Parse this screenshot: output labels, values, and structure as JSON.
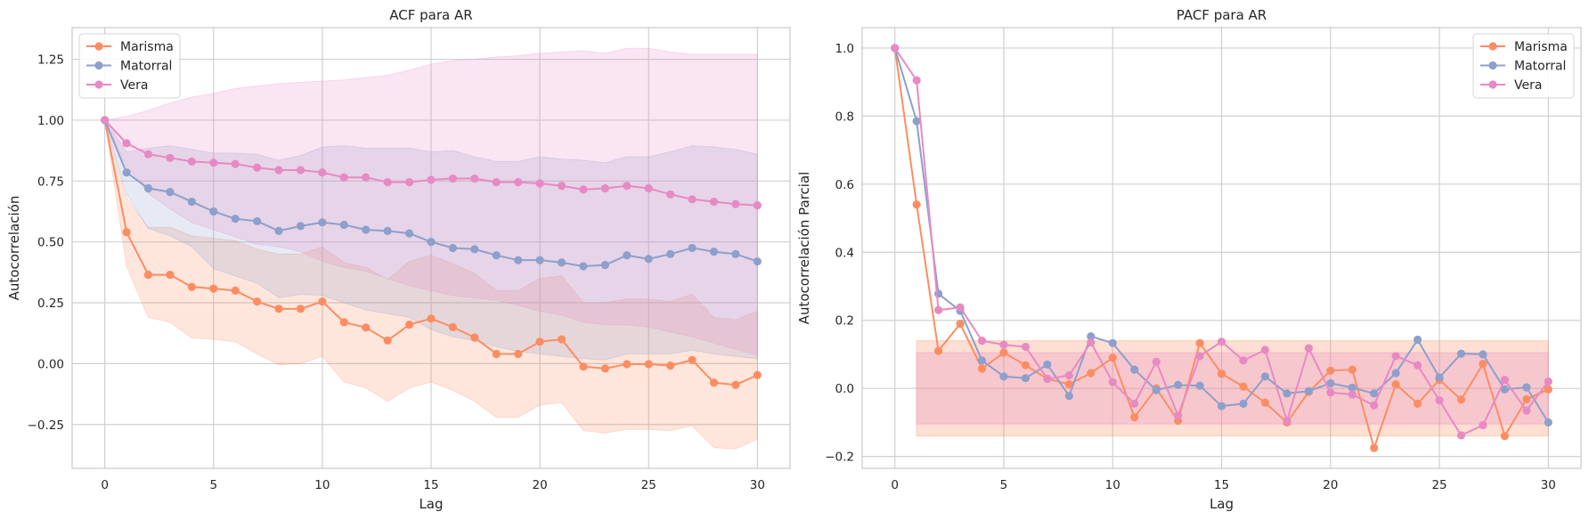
{
  "colors": {
    "marisma": "#fc8d62",
    "matorral": "#8da0cb",
    "vera": "#e78ac3",
    "grid": "#d0d0d0",
    "spine": "#cccccc"
  },
  "chart_data": [
    {
      "type": "line",
      "title": "ACF para AR",
      "xlabel": "Lag",
      "ylabel": "Autocorrelación",
      "xlim": [
        -1.5,
        31.5
      ],
      "ylim": [
        -0.43,
        1.38
      ],
      "xticks": [
        0,
        5,
        10,
        15,
        20,
        25,
        30
      ],
      "yticks": [
        -0.25,
        0.0,
        0.25,
        0.5,
        0.75,
        1.0,
        1.25
      ],
      "ytick_labels": [
        "−0.25",
        "0.00",
        "0.25",
        "0.50",
        "0.75",
        "1.00",
        "1.25"
      ],
      "grid": true,
      "legend_position": "upper-left",
      "x": [
        0,
        1,
        2,
        3,
        4,
        5,
        6,
        7,
        8,
        9,
        10,
        11,
        12,
        13,
        14,
        15,
        16,
        17,
        18,
        19,
        20,
        21,
        22,
        23,
        24,
        25,
        26,
        27,
        28,
        29,
        30
      ],
      "series": [
        {
          "name": "Marisma",
          "color_key": "marisma",
          "values": [
            1.0,
            0.54,
            0.365,
            0.365,
            0.315,
            0.308,
            0.3,
            0.255,
            0.225,
            0.225,
            0.255,
            0.17,
            0.148,
            0.095,
            0.16,
            0.185,
            0.15,
            0.107,
            0.04,
            0.04,
            0.09,
            0.1,
            -0.012,
            -0.02,
            -0.002,
            -0.002,
            -0.008,
            0.015,
            -0.078,
            -0.087,
            -0.047
          ],
          "band_upper": [
            1.0,
            0.68,
            0.56,
            0.56,
            0.525,
            0.515,
            0.505,
            0.47,
            0.45,
            0.45,
            0.48,
            0.415,
            0.395,
            0.345,
            0.42,
            0.445,
            0.41,
            0.37,
            0.3,
            0.3,
            0.35,
            0.36,
            0.25,
            0.25,
            0.265,
            0.265,
            0.255,
            0.285,
            0.19,
            0.18,
            0.215
          ],
          "band_lower": [
            1.0,
            0.4,
            0.19,
            0.17,
            0.105,
            0.1,
            0.09,
            0.04,
            -0.005,
            0.0,
            0.03,
            -0.075,
            -0.1,
            -0.155,
            -0.1,
            -0.075,
            -0.11,
            -0.155,
            -0.22,
            -0.22,
            -0.17,
            -0.16,
            -0.275,
            -0.285,
            -0.27,
            -0.27,
            -0.275,
            -0.255,
            -0.345,
            -0.35,
            -0.31
          ]
        },
        {
          "name": "Matorral",
          "color_key": "matorral",
          "values": [
            1.0,
            0.785,
            0.72,
            0.705,
            0.665,
            0.625,
            0.595,
            0.585,
            0.545,
            0.565,
            0.58,
            0.57,
            0.55,
            0.545,
            0.535,
            0.5,
            0.475,
            0.47,
            0.445,
            0.425,
            0.425,
            0.415,
            0.4,
            0.405,
            0.445,
            0.43,
            0.45,
            0.475,
            0.46,
            0.45,
            0.42
          ],
          "band_upper": [
            1.0,
            0.87,
            0.885,
            0.895,
            0.88,
            0.865,
            0.865,
            0.86,
            0.835,
            0.855,
            0.89,
            0.895,
            0.885,
            0.885,
            0.885,
            0.87,
            0.875,
            0.85,
            0.83,
            0.83,
            0.85,
            0.84,
            0.835,
            0.825,
            0.85,
            0.85,
            0.87,
            0.895,
            0.89,
            0.88,
            0.86
          ],
          "band_lower": [
            1.0,
            0.695,
            0.555,
            0.525,
            0.48,
            0.39,
            0.36,
            0.33,
            0.27,
            0.285,
            0.28,
            0.25,
            0.22,
            0.205,
            0.19,
            0.14,
            0.11,
            0.095,
            0.07,
            0.05,
            0.04,
            0.03,
            0.02,
            0.015,
            0.04,
            0.04,
            0.04,
            0.055,
            0.04,
            0.03,
            0.02
          ]
        },
        {
          "name": "Vera",
          "color_key": "vera",
          "values": [
            1.0,
            0.905,
            0.86,
            0.845,
            0.83,
            0.825,
            0.82,
            0.805,
            0.795,
            0.795,
            0.785,
            0.765,
            0.765,
            0.745,
            0.745,
            0.755,
            0.76,
            0.76,
            0.745,
            0.745,
            0.74,
            0.73,
            0.715,
            0.72,
            0.73,
            0.72,
            0.695,
            0.675,
            0.665,
            0.655,
            0.65
          ],
          "band_upper": [
            1.0,
            1.015,
            1.04,
            1.07,
            1.095,
            1.11,
            1.13,
            1.14,
            1.15,
            1.155,
            1.16,
            1.165,
            1.175,
            1.185,
            1.205,
            1.23,
            1.245,
            1.25,
            1.26,
            1.265,
            1.275,
            1.28,
            1.285,
            1.275,
            1.295,
            1.295,
            1.28,
            1.27,
            1.27,
            1.27,
            1.27
          ],
          "band_lower": [
            1.0,
            0.81,
            0.7,
            0.635,
            0.58,
            0.55,
            0.52,
            0.49,
            0.48,
            0.46,
            0.42,
            0.395,
            0.38,
            0.35,
            0.32,
            0.3,
            0.28,
            0.27,
            0.26,
            0.24,
            0.215,
            0.2,
            0.17,
            0.16,
            0.16,
            0.15,
            0.13,
            0.11,
            0.085,
            0.06,
            0.035
          ]
        }
      ]
    },
    {
      "type": "line",
      "title": "PACF para AR",
      "xlabel": "Lag",
      "ylabel": "Autocorrelación Parcial",
      "xlim": [
        -1.5,
        31.5
      ],
      "ylim": [
        -0.235,
        1.06
      ],
      "xticks": [
        0,
        5,
        10,
        15,
        20,
        25,
        30
      ],
      "yticks": [
        -0.2,
        0.0,
        0.2,
        0.4,
        0.6,
        0.8,
        1.0
      ],
      "ytick_labels": [
        "−0.2",
        "0.0",
        "0.2",
        "0.4",
        "0.6",
        "0.8",
        "1.0"
      ],
      "grid": true,
      "legend_position": "upper-right",
      "x": [
        0,
        1,
        2,
        3,
        4,
        5,
        6,
        7,
        8,
        9,
        10,
        11,
        12,
        13,
        14,
        15,
        16,
        17,
        18,
        19,
        20,
        21,
        22,
        23,
        24,
        25,
        26,
        27,
        28,
        29,
        30
      ],
      "confidence_bands": [
        {
          "color_key": "marisma",
          "from_lag": 1,
          "to_lag": 30,
          "upper": 0.14,
          "lower": -0.14
        },
        {
          "color_key": "vera",
          "from_lag": 1,
          "to_lag": 30,
          "upper": 0.105,
          "lower": -0.105
        }
      ],
      "series": [
        {
          "name": "Marisma",
          "color_key": "marisma",
          "values": [
            1.0,
            0.54,
            0.11,
            0.19,
            0.058,
            0.105,
            0.068,
            0.028,
            0.012,
            0.045,
            0.09,
            -0.085,
            0.0,
            -0.095,
            0.133,
            0.043,
            0.005,
            -0.042,
            -0.1,
            -0.01,
            0.052,
            0.055,
            -0.175,
            0.012,
            -0.045,
            0.025,
            -0.033,
            0.072,
            -0.14,
            -0.032,
            -0.003
          ]
        },
        {
          "name": "Matorral",
          "color_key": "matorral",
          "values": [
            1.0,
            0.785,
            0.278,
            0.228,
            0.082,
            0.035,
            0.03,
            0.07,
            -0.022,
            0.153,
            0.133,
            0.055,
            -0.005,
            0.01,
            0.008,
            -0.052,
            -0.045,
            0.035,
            -0.015,
            -0.008,
            0.015,
            0.002,
            -0.015,
            0.045,
            0.143,
            0.032,
            0.102,
            0.1,
            -0.003,
            0.003,
            -0.1
          ]
        },
        {
          "name": "Vera",
          "color_key": "vera",
          "values": [
            1.0,
            0.905,
            0.23,
            0.238,
            0.14,
            0.128,
            0.122,
            0.028,
            0.038,
            0.135,
            0.018,
            -0.045,
            0.078,
            -0.08,
            0.095,
            0.137,
            0.082,
            0.113,
            -0.095,
            0.118,
            -0.012,
            -0.018,
            -0.05,
            0.095,
            0.068,
            -0.035,
            -0.138,
            -0.108,
            0.025,
            -0.065,
            0.02
          ]
        }
      ]
    }
  ]
}
